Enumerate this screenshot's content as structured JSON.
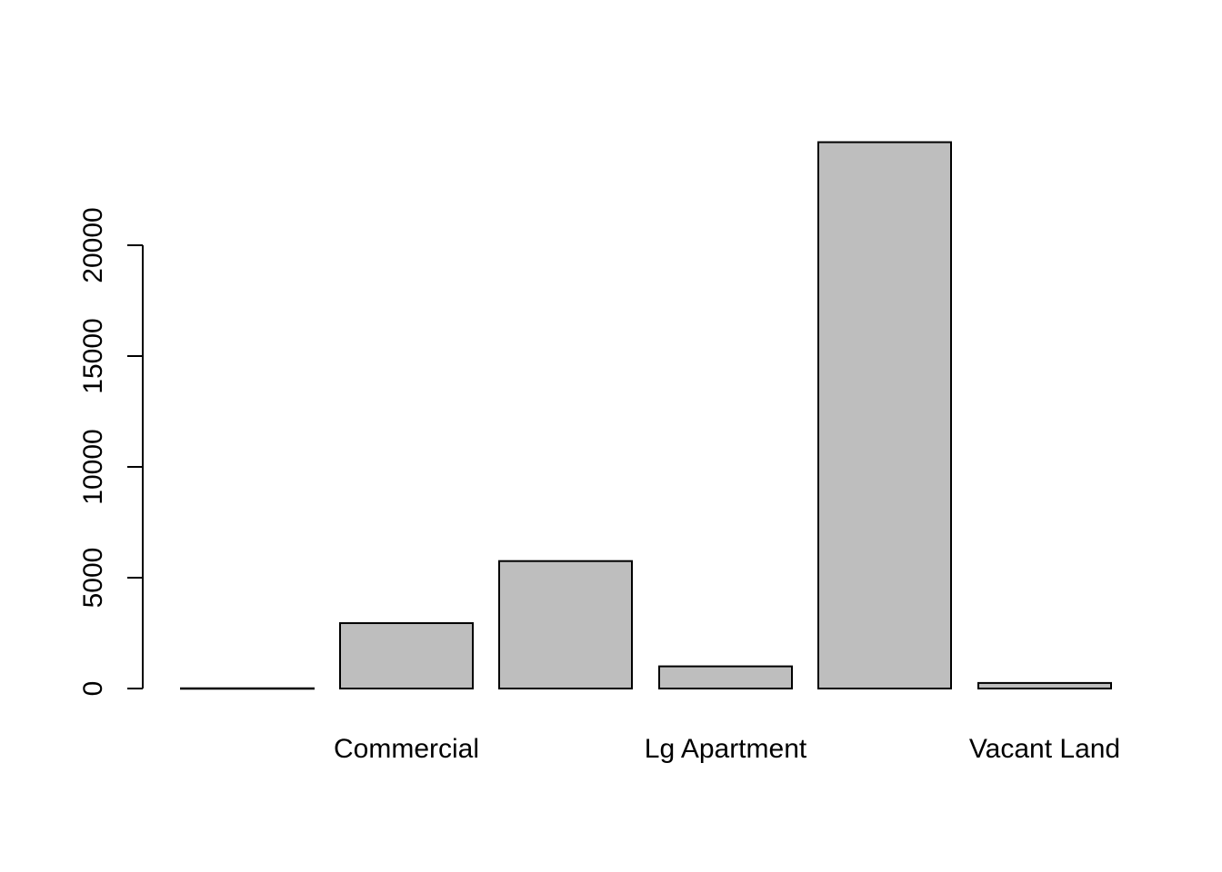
{
  "chart_data": {
    "type": "bar",
    "categories": [
      "",
      "Commercial",
      "",
      "Lg Apartment",
      "",
      "Vacant Land"
    ],
    "visible_category_labels": [
      "",
      "Commercial",
      "",
      "Lg Apartment",
      "",
      "Vacant Land"
    ],
    "values": [
      10,
      2950,
      5750,
      1000,
      24650,
      250
    ],
    "title": "",
    "xlabel": "",
    "ylabel": "",
    "ylim": [
      0,
      24650
    ],
    "yticks": [
      0,
      5000,
      10000,
      15000,
      20000
    ],
    "ytick_labels": [
      "0",
      "5000",
      "10000",
      "15000",
      "20000"
    ],
    "grid": false,
    "legend": "none",
    "bar_fill": "#bebebe",
    "bar_stroke": "#000000"
  }
}
